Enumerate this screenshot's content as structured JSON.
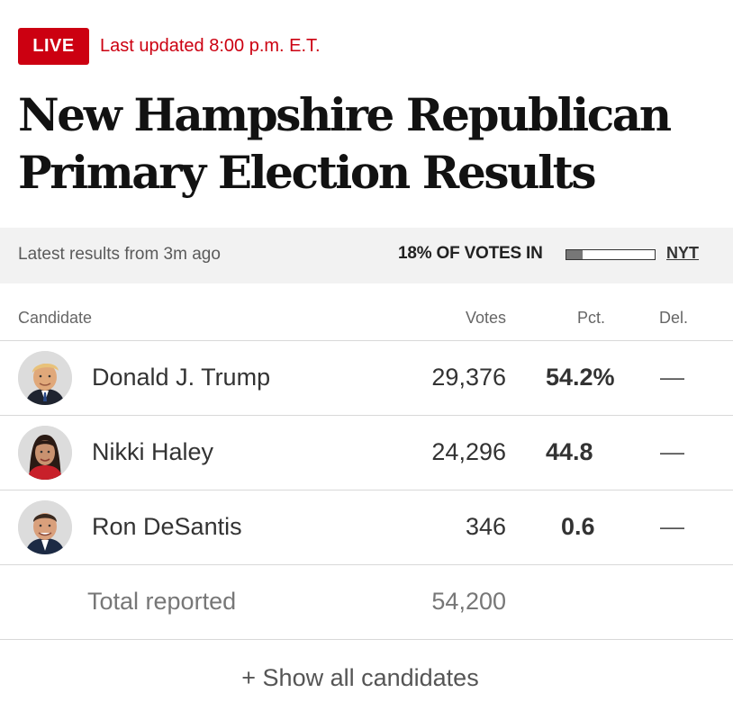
{
  "live": {
    "badge": "LIVE",
    "updated": "Last updated 8:00 p.m. E.T.",
    "color": "#cc0011"
  },
  "headline": "New Hampshire Republican Primary Election Results",
  "status": {
    "latest": "Latest results from 3m ago",
    "votes_in": "18% OF VOTES IN",
    "progress_fraction": 0.18,
    "source_link": "NYT"
  },
  "table": {
    "headers": {
      "candidate": "Candidate",
      "votes": "Votes",
      "pct": "Pct.",
      "del": "Del."
    },
    "candidates": [
      {
        "name": "Donald J. Trump",
        "votes": "29,376",
        "pct": "54.2%",
        "del": "—",
        "avatar": "trump-avatar"
      },
      {
        "name": "Nikki Haley",
        "votes": "24,296",
        "pct": "44.8",
        "del": "—",
        "avatar": "haley-avatar"
      },
      {
        "name": "Ron DeSantis",
        "votes": "346",
        "pct": "0.6",
        "del": "—",
        "avatar": "desantis-avatar"
      }
    ],
    "total": {
      "label": "Total reported",
      "votes": "54,200"
    }
  },
  "show_all": "+ Show all candidates"
}
